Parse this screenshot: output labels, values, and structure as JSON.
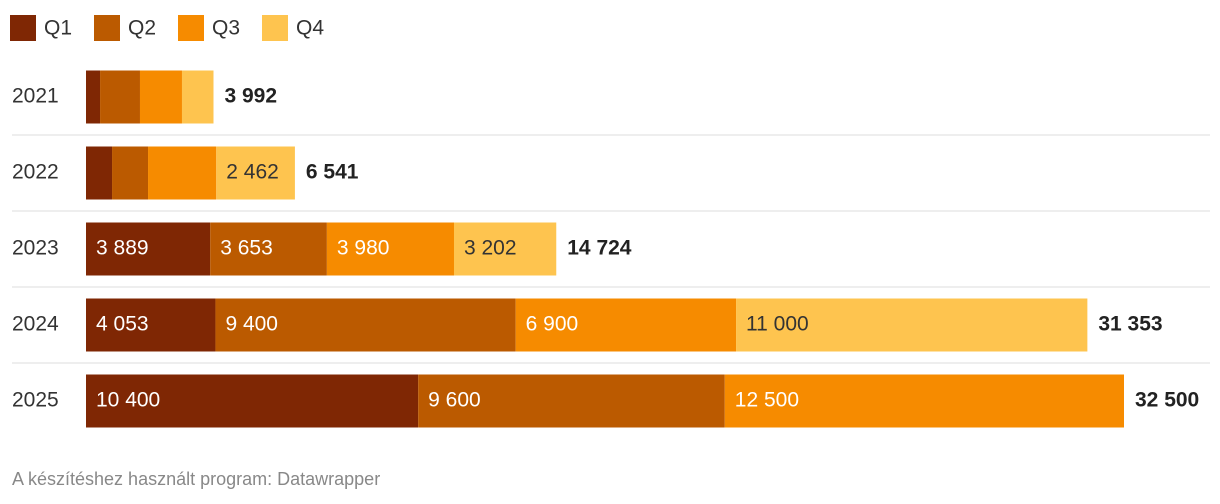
{
  "chart_data": {
    "type": "stacked-bar-horizontal",
    "categories": [
      "2021",
      "2022",
      "2023",
      "2024",
      "2025"
    ],
    "series": [
      {
        "name": "Q1",
        "color": "#7f2704",
        "values": [
          440,
          815,
          3889,
          4053,
          10400
        ],
        "value_labels": [
          null,
          null,
          "3 889",
          "4 053",
          "10 400"
        ]
      },
      {
        "name": "Q2",
        "color": "#bb5a00",
        "values": [
          1250,
          1127,
          3653,
          9400,
          9600
        ],
        "value_labels": [
          null,
          null,
          "3 653",
          "9 400",
          "9 600"
        ]
      },
      {
        "name": "Q3",
        "color": "#f68b00",
        "values": [
          1315,
          2137,
          3980,
          6900,
          12500
        ],
        "value_labels": [
          null,
          null,
          "3 980",
          "6 900",
          "12 500"
        ]
      },
      {
        "name": "Q4",
        "color": "#fec44f",
        "values": [
          987,
          2462,
          3202,
          11000,
          null
        ],
        "value_labels": [
          null,
          "2 462",
          "3 202",
          "11 000",
          null
        ]
      }
    ],
    "totals": [
      3992,
      6541,
      14724,
      31353,
      32500
    ],
    "total_labels": [
      "3 992",
      "6 541",
      "14 724",
      "31 353",
      "32 500"
    ],
    "footer": "A készítéshez használt program: Datawrapper"
  }
}
